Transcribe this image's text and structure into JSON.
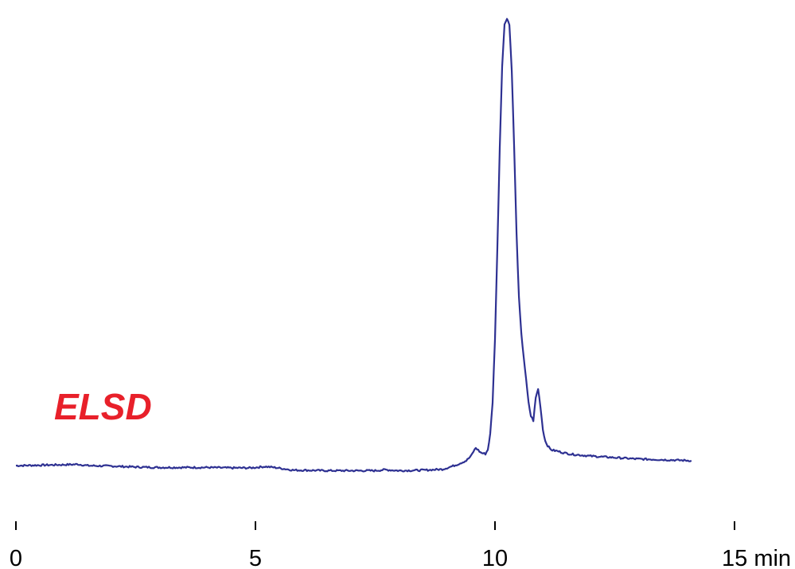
{
  "chart_data": {
    "type": "line",
    "title": "",
    "xlabel": "",
    "ylabel": "",
    "x_unit": "min",
    "xlim": [
      0,
      15
    ],
    "ylim": [
      -0.06,
      1.0
    ],
    "grid": false,
    "x_ticks": [
      {
        "value": 0,
        "label": "0"
      },
      {
        "value": 5,
        "label": "5"
      },
      {
        "value": 10,
        "label": "10"
      },
      {
        "value": 15,
        "label": "15 min"
      }
    ],
    "annotations": [
      {
        "text": "ELSD",
        "color": "#e8202a"
      }
    ],
    "series": [
      {
        "color": "#2e3192",
        "x": [
          0.0,
          0.5,
          1.0,
          1.3,
          1.5,
          2.0,
          2.5,
          3.0,
          3.5,
          4.0,
          4.5,
          4.9,
          5.0,
          5.2,
          5.4,
          5.6,
          5.8,
          6.0,
          6.5,
          7.0,
          7.5,
          7.7,
          8.0,
          8.5,
          8.9,
          9.0,
          9.2,
          9.4,
          9.5,
          9.55,
          9.6,
          9.65,
          9.7,
          9.75,
          9.8,
          9.85,
          9.9,
          9.95,
          10.0,
          10.05,
          10.1,
          10.15,
          10.2,
          10.25,
          10.3,
          10.35,
          10.4,
          10.45,
          10.5,
          10.55,
          10.6,
          10.65,
          10.7,
          10.75,
          10.8,
          10.85,
          10.9,
          10.95,
          11.0,
          11.05,
          11.1,
          11.15,
          11.2,
          11.3,
          11.4,
          11.5,
          11.6,
          11.8,
          12.0,
          12.3,
          12.6,
          12.9,
          13.2,
          13.5,
          13.8,
          14.1
        ],
        "y": [
          0.001,
          0.002,
          0.003,
          0.004,
          0.001,
          0.0,
          -0.002,
          -0.003,
          -0.003,
          -0.003,
          -0.004,
          -0.004,
          -0.003,
          -0.001,
          -0.003,
          -0.006,
          -0.009,
          -0.009,
          -0.01,
          -0.01,
          -0.01,
          -0.008,
          -0.01,
          -0.009,
          -0.007,
          -0.004,
          0.003,
          0.012,
          0.022,
          0.032,
          0.04,
          0.035,
          0.03,
          0.028,
          0.027,
          0.036,
          0.07,
          0.14,
          0.28,
          0.48,
          0.7,
          0.88,
          0.97,
          0.985,
          0.97,
          0.87,
          0.7,
          0.51,
          0.37,
          0.29,
          0.24,
          0.19,
          0.14,
          0.11,
          0.1,
          0.15,
          0.17,
          0.13,
          0.08,
          0.055,
          0.045,
          0.038,
          0.035,
          0.033,
          0.03,
          0.028,
          0.026,
          0.024,
          0.022,
          0.02,
          0.018,
          0.016,
          0.015,
          0.014,
          0.013,
          0.012
        ]
      }
    ]
  }
}
